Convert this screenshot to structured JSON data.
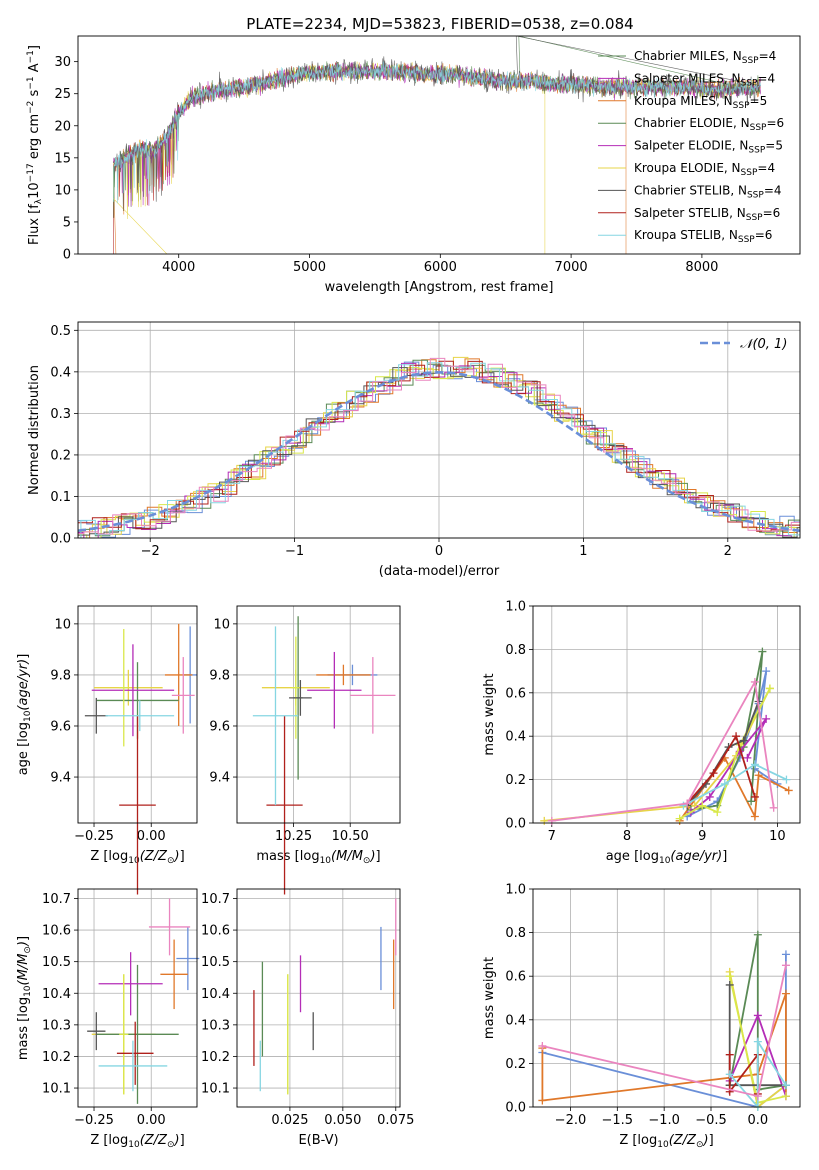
{
  "figure": {
    "title": "PLATE=2234, MJD=53823, FIBERID=0538, z=0.084"
  },
  "series_colors": [
    "#6a8fd8",
    "#e0782a",
    "#e7d448",
    "#5a8a55",
    "#b42db7",
    "#d9e84a",
    "#555555",
    "#b0211c",
    "#86d6e2",
    "#ea85bf"
  ],
  "chart_data": [
    {
      "id": "spectrum",
      "type": "line",
      "xlabel": "wavelength [Angstrom, rest frame]",
      "ylabel": "Flux [f_λ 10^-17 erg cm^-2 s^-1 A^-1]",
      "xlim": [
        3230,
        8750
      ],
      "ylim": [
        0,
        34
      ],
      "xticks": [
        4000,
        5000,
        6000,
        7000,
        8000
      ],
      "yticks": [
        0,
        5,
        10,
        15,
        20,
        25,
        30
      ],
      "grid": false,
      "legend": "top-right",
      "series": [
        {
          "name": "Chabrier MILES",
          "nssp": 4,
          "color": "#5a8a55"
        },
        {
          "name": "Salpeter MILES",
          "nssp": 4,
          "color": "#b42db7"
        },
        {
          "name": "Kroupa MILES",
          "nssp": 5,
          "color": "#e0782a"
        },
        {
          "name": "Chabrier ELODIE",
          "nssp": 6,
          "color": "#5a8a55"
        },
        {
          "name": "Salpeter ELODIE",
          "nssp": 5,
          "color": "#b42db7"
        },
        {
          "name": "Kroupa ELODIE",
          "nssp": 4,
          "color": "#e7d448"
        },
        {
          "name": "Chabrier STELIB",
          "nssp": 4,
          "color": "#555555"
        },
        {
          "name": "Salpeter STELIB",
          "nssp": 6,
          "color": "#b0211c"
        },
        {
          "name": "Kroupa STELIB",
          "nssp": 6,
          "color": "#86d6e2"
        }
      ],
      "profile_x": [
        3520,
        3600,
        3700,
        3800,
        3900,
        4000,
        4100,
        4300,
        4500,
        4700,
        4900,
        5100,
        5300,
        5500,
        5700,
        5900,
        6100,
        6300,
        6500,
        6700,
        6900,
        7100,
        7300,
        7500,
        7700,
        7900,
        8100,
        8300,
        8450
      ],
      "profile_y": [
        14,
        15,
        16.5,
        16,
        18,
        22,
        24.5,
        25.5,
        26,
        27,
        28,
        28.5,
        28.5,
        28.5,
        28.5,
        28,
        28,
        27.5,
        27,
        27,
        26.5,
        26.5,
        26,
        26,
        26,
        26,
        25.5,
        26,
        26
      ]
    },
    {
      "id": "residual-histogram",
      "type": "histogram",
      "xlabel": "(data-model)/error",
      "ylabel": "Normed distribution",
      "xlim": [
        -2.5,
        2.5
      ],
      "ylim": [
        0,
        0.52
      ],
      "xticks": [
        -2,
        -1,
        0,
        1,
        2
      ],
      "yticks": [
        0.0,
        0.1,
        0.2,
        0.3,
        0.4,
        0.5
      ],
      "grid": true,
      "legend": "top-right",
      "reference_curve": {
        "name": "𝒩(0, 1)",
        "color": "#6a8fd8",
        "style": "dashed"
      },
      "bin_width": 0.1
    },
    {
      "id": "age-vs-Z",
      "type": "errorbar",
      "xlabel": "Z [log10(Z/Z⊙)]",
      "ylabel": "age  [log10(age/yr)]",
      "xlim": [
        -0.32,
        0.2
      ],
      "ylim": [
        9.22,
        10.07
      ],
      "xticks": [
        -0.25,
        0.0
      ],
      "yticks": [
        9.4,
        9.6,
        9.8,
        10.0
      ],
      "grid": true,
      "points": [
        {
          "x": 0.17,
          "y": 9.8,
          "xerr": 0.03,
          "yerr": 0.19,
          "color": "#6a8fd8"
        },
        {
          "x": 0.12,
          "y": 9.8,
          "xerr": 0.06,
          "yerr": 0.2,
          "color": "#e0782a"
        },
        {
          "x": -0.1,
          "y": 9.75,
          "xerr": 0.15,
          "yerr": 0.07,
          "color": "#e7d448"
        },
        {
          "x": -0.06,
          "y": 9.7,
          "xerr": 0.18,
          "yerr": 0.15,
          "color": "#5a8a55"
        },
        {
          "x": -0.08,
          "y": 9.74,
          "xerr": 0.18,
          "yerr": 0.18,
          "color": "#b42db7"
        },
        {
          "x": -0.12,
          "y": 9.75,
          "xerr": 0.02,
          "yerr": 0.23,
          "color": "#d9e84a"
        },
        {
          "x": -0.24,
          "y": 9.64,
          "xerr": 0.05,
          "yerr": 0.07,
          "color": "#555555"
        },
        {
          "x": -0.06,
          "y": 9.29,
          "xerr": 0.08,
          "yerr": 0.35,
          "color": "#b0211c"
        },
        {
          "x": -0.05,
          "y": 9.64,
          "xerr": 0.15,
          "yerr": 0.06,
          "color": "#86d6e2"
        },
        {
          "x": 0.14,
          "y": 9.72,
          "xerr": 0.05,
          "yerr": 0.15,
          "color": "#ea85bf"
        }
      ]
    },
    {
      "id": "age-vs-mass",
      "type": "errorbar",
      "xlabel": "mass [log10(M/M⊙)]",
      "ylabel": "",
      "xlim": [
        10.0,
        10.72
      ],
      "ylim": [
        9.22,
        10.07
      ],
      "xticks": [
        10.25,
        10.5
      ],
      "yticks": [
        9.4,
        9.6,
        9.8,
        10.0
      ],
      "grid": true,
      "points": [
        {
          "x": 10.51,
          "y": 9.8,
          "xerr": 0.11,
          "yerr": 0.04,
          "color": "#6a8fd8"
        },
        {
          "x": 10.47,
          "y": 9.8,
          "xerr": 0.12,
          "yerr": 0.04,
          "color": "#e0782a"
        },
        {
          "x": 10.26,
          "y": 9.75,
          "xerr": 0.15,
          "yerr": 0.07,
          "color": "#e7d448"
        },
        {
          "x": 10.27,
          "y": 9.71,
          "xerr": 0.02,
          "yerr": 0.32,
          "color": "#5a8a55"
        },
        {
          "x": 10.43,
          "y": 9.74,
          "xerr": 0.12,
          "yerr": 0.15,
          "color": "#b42db7"
        },
        {
          "x": 10.26,
          "y": 9.75,
          "xerr": 0.02,
          "yerr": 0.2,
          "color": "#d9e84a"
        },
        {
          "x": 10.28,
          "y": 9.71,
          "xerr": 0.05,
          "yerr": 0.07,
          "color": "#555555"
        },
        {
          "x": 10.21,
          "y": 9.29,
          "xerr": 0.08,
          "yerr": 0.35,
          "color": "#b0211c"
        },
        {
          "x": 10.17,
          "y": 9.64,
          "xerr": 0.1,
          "yerr": 0.35,
          "color": "#86d6e2"
        },
        {
          "x": 10.6,
          "y": 9.72,
          "xerr": 0.1,
          "yerr": 0.15,
          "color": "#ea85bf"
        }
      ]
    },
    {
      "id": "mass-weight-vs-age",
      "type": "line",
      "xlabel": "age  [log10(age/yr)]",
      "ylabel": "mass weight",
      "xlim": [
        6.75,
        10.3
      ],
      "ylim": [
        0,
        1.0
      ],
      "xticks": [
        7,
        8,
        9,
        10
      ],
      "yticks": [
        0.0,
        0.2,
        0.4,
        0.6,
        0.8,
        1.0
      ],
      "grid": true,
      "series": [
        {
          "color": "#6a8fd8",
          "x": [
            8.8,
            9.2,
            9.5,
            9.75,
            9.85,
            9.7,
            10.0
          ],
          "y": [
            0.03,
            0.1,
            0.3,
            0.55,
            0.7,
            0.25,
            0.18
          ]
        },
        {
          "color": "#e0782a",
          "x": [
            8.7,
            9.3,
            9.7,
            9.75,
            10.15
          ],
          "y": [
            0.01,
            0.3,
            0.03,
            0.22,
            0.15
          ]
        },
        {
          "color": "#e7d448",
          "x": [
            6.9,
            8.9,
            9.45,
            9.9
          ],
          "y": [
            0.01,
            0.08,
            0.31,
            0.62
          ]
        },
        {
          "color": "#5a8a55",
          "x": [
            8.85,
            9.2,
            9.55,
            9.8,
            9.65
          ],
          "y": [
            0.06,
            0.08,
            0.35,
            0.79,
            0.1
          ]
        },
        {
          "color": "#b42db7",
          "x": [
            8.85,
            9.1,
            9.5,
            9.85,
            9.6
          ],
          "y": [
            0.05,
            0.12,
            0.33,
            0.48,
            0.3
          ]
        },
        {
          "color": "#d9e84a",
          "x": [
            8.7,
            9.0,
            9.2,
            9.5,
            9.9
          ],
          "y": [
            0.02,
            0.08,
            0.05,
            0.36,
            0.62
          ]
        },
        {
          "color": "#555555",
          "x": [
            8.8,
            9.05,
            9.35,
            9.55,
            9.75
          ],
          "y": [
            0.08,
            0.18,
            0.35,
            0.38,
            0.56
          ]
        },
        {
          "color": "#b0211c",
          "x": [
            8.8,
            9.15,
            9.45,
            9.7
          ],
          "y": [
            0.09,
            0.23,
            0.4,
            0.12
          ]
        },
        {
          "color": "#86d6e2",
          "x": [
            8.75,
            9.3,
            9.7,
            10.12
          ],
          "y": [
            0.08,
            0.18,
            0.27,
            0.2
          ]
        },
        {
          "color": "#ea85bf",
          "x": [
            7.0,
            8.8,
            9.7,
            9.95
          ],
          "y": [
            0.01,
            0.09,
            0.65,
            0.07
          ]
        }
      ]
    },
    {
      "id": "mass-vs-Z",
      "type": "errorbar",
      "xlabel": "Z [log10(Z/Z⊙)]",
      "ylabel": "mass [log10(M/M⊙)]",
      "xlim": [
        -0.32,
        0.2
      ],
      "ylim": [
        10.04,
        10.73
      ],
      "xticks": [
        -0.25,
        0.0
      ],
      "yticks": [
        10.1,
        10.2,
        10.3,
        10.4,
        10.5,
        10.6,
        10.7
      ],
      "grid": true,
      "points": [
        {
          "x": 0.16,
          "y": 10.51,
          "xerr": 0.05,
          "yerr": 0.1,
          "color": "#6a8fd8"
        },
        {
          "x": 0.1,
          "y": 10.46,
          "xerr": 0.06,
          "yerr": 0.11,
          "color": "#e0782a"
        },
        {
          "x": -0.12,
          "y": 10.27,
          "xerr": 0.14,
          "yerr": 0.19,
          "color": "#e7d448"
        },
        {
          "x": -0.06,
          "y": 10.27,
          "xerr": 0.18,
          "yerr": 0.22,
          "color": "#5a8a55"
        },
        {
          "x": -0.09,
          "y": 10.43,
          "xerr": 0.14,
          "yerr": 0.1,
          "color": "#b42db7"
        },
        {
          "x": -0.12,
          "y": 10.27,
          "xerr": 0.02,
          "yerr": 0.19,
          "color": "#d9e84a"
        },
        {
          "x": -0.24,
          "y": 10.28,
          "xerr": 0.04,
          "yerr": 0.06,
          "color": "#555555"
        },
        {
          "x": -0.07,
          "y": 10.21,
          "xerr": 0.08,
          "yerr": 0.1,
          "color": "#b0211c"
        },
        {
          "x": -0.08,
          "y": 10.17,
          "xerr": 0.15,
          "yerr": 0.08,
          "color": "#86d6e2"
        },
        {
          "x": 0.08,
          "y": 10.61,
          "xerr": 0.09,
          "yerr": 0.09,
          "color": "#ea85bf"
        }
      ]
    },
    {
      "id": "mass-vs-EBV",
      "type": "errorbar",
      "xlabel": "E(B-V)",
      "ylabel": "",
      "xlim": [
        0.0,
        0.077
      ],
      "ylim": [
        10.04,
        10.73
      ],
      "xticks": [
        0.025,
        0.05,
        0.075
      ],
      "yticks": [
        10.1,
        10.2,
        10.3,
        10.4,
        10.5,
        10.6,
        10.7
      ],
      "grid": true,
      "points": [
        {
          "x": 0.068,
          "y": 10.51,
          "xerr": 0.0,
          "yerr": 0.1,
          "color": "#6a8fd8"
        },
        {
          "x": 0.074,
          "y": 10.46,
          "xerr": 0.0,
          "yerr": 0.11,
          "color": "#e0782a"
        },
        {
          "x": 0.024,
          "y": 10.27,
          "xerr": 0.0,
          "yerr": 0.19,
          "color": "#e7d448"
        },
        {
          "x": 0.012,
          "y": 10.35,
          "xerr": 0.0,
          "yerr": 0.15,
          "color": "#5a8a55"
        },
        {
          "x": 0.03,
          "y": 10.43,
          "xerr": 0.0,
          "yerr": 0.09,
          "color": "#b42db7"
        },
        {
          "x": 0.024,
          "y": 10.27,
          "xerr": 0.0,
          "yerr": 0.19,
          "color": "#d9e84a"
        },
        {
          "x": 0.036,
          "y": 10.28,
          "xerr": 0.0,
          "yerr": 0.06,
          "color": "#555555"
        },
        {
          "x": 0.008,
          "y": 10.29,
          "xerr": 0.0,
          "yerr": 0.12,
          "color": "#b0211c"
        },
        {
          "x": 0.011,
          "y": 10.17,
          "xerr": 0.0,
          "yerr": 0.08,
          "color": "#86d6e2"
        },
        {
          "x": 0.075,
          "y": 10.61,
          "xerr": 0.0,
          "yerr": 0.09,
          "color": "#ea85bf"
        }
      ]
    },
    {
      "id": "mass-weight-vs-Z",
      "type": "line",
      "xlabel": "Z [log10(Z/Z⊙)]",
      "ylabel": "mass weight",
      "xlim": [
        -2.4,
        0.45
      ],
      "ylim": [
        0,
        1.0
      ],
      "xticks": [
        -2.0,
        -1.5,
        -1.0,
        -0.5,
        0.0
      ],
      "yticks": [
        0.0,
        0.2,
        0.4,
        0.6,
        0.8,
        1.0
      ],
      "grid": true,
      "series": [
        {
          "color": "#6a8fd8",
          "x": [
            -2.3,
            0.0,
            0.3,
            0.3
          ],
          "y": [
            0.25,
            0.0,
            0.1,
            0.7
          ]
        },
        {
          "color": "#e0782a",
          "x": [
            -2.3,
            -2.3,
            0.0,
            0.3,
            0.3
          ],
          "y": [
            0.27,
            0.03,
            0.15,
            0.52,
            0.05
          ]
        },
        {
          "color": "#e7d448",
          "x": [
            -0.3,
            0.0,
            0.3
          ],
          "y": [
            0.62,
            0.0,
            0.1
          ]
        },
        {
          "color": "#5a8a55",
          "x": [
            -0.3,
            0.0,
            0.0,
            0.3
          ],
          "y": [
            0.1,
            0.79,
            0.08,
            0.1
          ]
        },
        {
          "color": "#b42db7",
          "x": [
            -0.3,
            0.0,
            0.3
          ],
          "y": [
            0.12,
            0.42,
            0.05
          ]
        },
        {
          "color": "#d9e84a",
          "x": [
            -0.3,
            0.0,
            0.3
          ],
          "y": [
            0.6,
            0.02,
            0.05
          ]
        },
        {
          "color": "#555555",
          "x": [
            -0.3,
            -0.3,
            0.0,
            0.3
          ],
          "y": [
            0.56,
            0.1,
            0.1,
            0.1
          ]
        },
        {
          "color": "#b0211c",
          "x": [
            -0.3,
            -0.3,
            0.0,
            0.0
          ],
          "y": [
            0.24,
            0.07,
            0.24,
            0.06
          ]
        },
        {
          "color": "#86d6e2",
          "x": [
            -0.3,
            0.0,
            0.0,
            0.3
          ],
          "y": [
            0.15,
            0.0,
            0.3,
            0.1
          ]
        },
        {
          "color": "#ea85bf",
          "x": [
            -2.3,
            0.0,
            0.3
          ],
          "y": [
            0.28,
            0.05,
            0.65
          ]
        }
      ]
    }
  ]
}
